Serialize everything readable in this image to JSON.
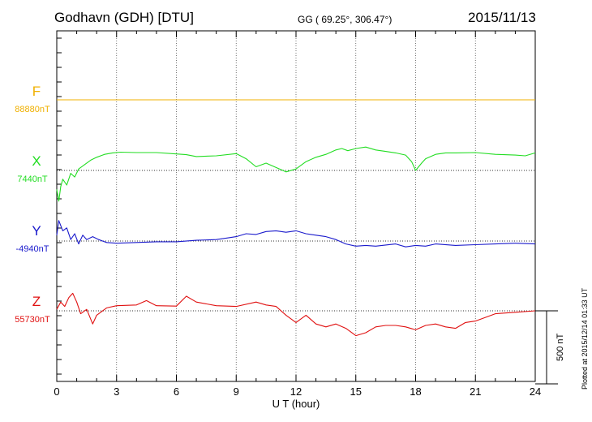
{
  "header": {
    "station": "Godhavn (GDH)  [DTU]",
    "coords": "GG ( 69.25°, 306.47°)",
    "date": "2015/11/13"
  },
  "footer_note": "Plotted at 2015/12/14 01:33 UT",
  "scale_label": "500 nT",
  "colors": {
    "F": "#f0b000",
    "X": "#22dd22",
    "Y": "#1a1acc",
    "Z": "#e01010",
    "axis": "#000000"
  },
  "chart_data": {
    "type": "line",
    "xlabel": "U T (hour)",
    "xlim": [
      0,
      24
    ],
    "xticks": [
      0,
      3,
      6,
      9,
      12,
      15,
      18,
      21,
      24
    ],
    "grid": true,
    "scale_bar_nT": 500,
    "series": [
      {
        "name": "F",
        "baseline_label": "88880nT",
        "baseline": 88880,
        "x": [
          0,
          24
        ],
        "values": [
          88880,
          88880
        ]
      },
      {
        "name": "X",
        "baseline_label": "7440nT",
        "baseline": 7440,
        "x": [
          0,
          0.1,
          0.2,
          0.3,
          0.5,
          0.7,
          0.9,
          1.1,
          1.4,
          1.7,
          2.0,
          2.4,
          2.8,
          3.2,
          4.0,
          5.0,
          6.0,
          6.5,
          7.0,
          8.0,
          9.0,
          9.5,
          10.0,
          10.5,
          11.0,
          11.5,
          12.0,
          12.5,
          13.0,
          13.5,
          14.0,
          14.3,
          14.6,
          15.0,
          15.5,
          16.0,
          16.5,
          17.0,
          17.5,
          17.8,
          18.0,
          18.3,
          18.5,
          19.0,
          19.5,
          20.0,
          21.0,
          22.0,
          23.0,
          23.5,
          24.0
        ],
        "values": [
          7310,
          7230,
          7330,
          7380,
          7340,
          7420,
          7395,
          7450,
          7480,
          7510,
          7530,
          7550,
          7560,
          7565,
          7562,
          7562,
          7553,
          7548,
          7535,
          7540,
          7555,
          7520,
          7465,
          7490,
          7460,
          7430,
          7450,
          7500,
          7530,
          7550,
          7580,
          7590,
          7575,
          7590,
          7600,
          7580,
          7570,
          7560,
          7545,
          7500,
          7440,
          7490,
          7520,
          7550,
          7560,
          7560,
          7562,
          7550,
          7545,
          7540,
          7560
        ]
      },
      {
        "name": "Y",
        "baseline_label": "-4940nT",
        "baseline": -4940,
        "x": [
          0,
          0.1,
          0.3,
          0.5,
          0.7,
          0.9,
          1.1,
          1.3,
          1.5,
          1.8,
          2.1,
          2.5,
          3.0,
          4.0,
          5.0,
          6.0,
          7.0,
          8.0,
          8.5,
          9.0,
          9.5,
          10.0,
          10.5,
          11.0,
          11.5,
          12.0,
          12.5,
          13.0,
          13.5,
          14.0,
          14.5,
          15.0,
          15.5,
          16.0,
          17.0,
          17.5,
          18.0,
          18.5,
          19.0,
          20.0,
          21.0,
          22.0,
          23.0,
          24.0
        ],
        "values": [
          -4900,
          -4800,
          -4870,
          -4850,
          -4930,
          -4890,
          -4960,
          -4900,
          -4930,
          -4910,
          -4930,
          -4950,
          -4955,
          -4950,
          -4945,
          -4945,
          -4935,
          -4930,
          -4920,
          -4910,
          -4890,
          -4895,
          -4875,
          -4870,
          -4880,
          -4870,
          -4890,
          -4900,
          -4910,
          -4930,
          -4960,
          -4975,
          -4970,
          -4975,
          -4960,
          -4980,
          -4970,
          -4975,
          -4960,
          -4970,
          -4965,
          -4960,
          -4955,
          -4960
        ]
      },
      {
        "name": "Z",
        "baseline_label": "55730nT",
        "baseline": 55730,
        "x": [
          0,
          0.2,
          0.4,
          0.6,
          0.8,
          1.0,
          1.2,
          1.5,
          1.8,
          2.0,
          2.5,
          3.0,
          4.0,
          4.5,
          5.0,
          6.0,
          6.5,
          7.0,
          8.0,
          9.0,
          10.0,
          10.5,
          11.0,
          11.5,
          12.0,
          12.5,
          13.0,
          13.5,
          14.0,
          14.5,
          15.0,
          15.5,
          16.0,
          16.5,
          17.0,
          17.5,
          18.0,
          18.5,
          19.0,
          19.5,
          20.0,
          20.5,
          21.0,
          22.0,
          23.0,
          24.0
        ],
        "values": [
          55740,
          55790,
          55760,
          55820,
          55850,
          55790,
          55710,
          55740,
          55640,
          55700,
          55750,
          55765,
          55770,
          55800,
          55765,
          55762,
          55830,
          55790,
          55765,
          55760,
          55790,
          55770,
          55760,
          55700,
          55650,
          55700,
          55640,
          55620,
          55640,
          55610,
          55560,
          55580,
          55620,
          55630,
          55630,
          55620,
          55600,
          55630,
          55640,
          55620,
          55610,
          55650,
          55660,
          55710,
          55720,
          55730
        ]
      }
    ]
  }
}
